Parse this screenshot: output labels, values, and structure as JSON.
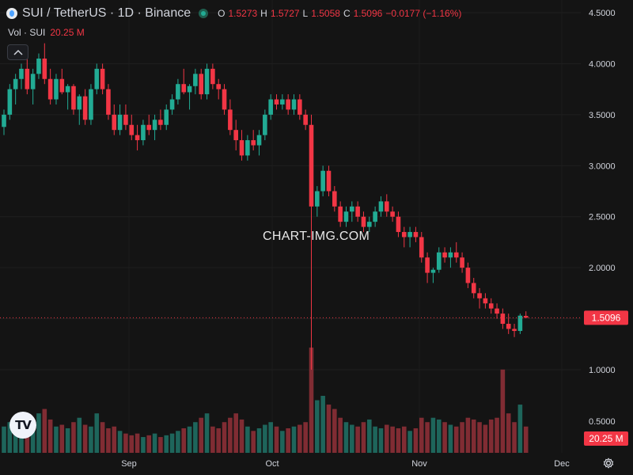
{
  "header": {
    "symbol": "SUI / TetherUS · 1D · Binance",
    "ohlc": [
      {
        "key": "O",
        "value": "1.5273"
      },
      {
        "key": "H",
        "value": "1.5727"
      },
      {
        "key": "L",
        "value": "1.5058"
      },
      {
        "key": "C",
        "value": "1.5096"
      },
      {
        "key": "",
        "value": "−0.0177 (−1.16%)"
      }
    ]
  },
  "volume_legend": {
    "label": "Vol · SUI",
    "value": "20.25 M"
  },
  "watermark": "CHART-IMG.COM",
  "colors": {
    "background": "#141414",
    "up": "#22ab94",
    "down": "#f23645",
    "grid": "#1f1f1f",
    "text": "#d1d4dc"
  },
  "chart_data": {
    "type": "candlestick",
    "ylim": [
      1.0,
      4.5
    ],
    "price_ticks": [
      "4.5000",
      "4.0000",
      "3.5000",
      "3.0000",
      "2.5000",
      "2.0000",
      "1.5000",
      "1.0000"
    ],
    "volume_ticks": [
      "0.5000"
    ],
    "x_ticks": [
      "Sep",
      "Oct",
      "Nov",
      "Dec"
    ],
    "last_price": "1.5096",
    "last_volume": "20.25 M",
    "candles": [
      [
        3.38,
        3.55,
        3.3,
        3.5
      ],
      [
        3.5,
        3.8,
        3.45,
        3.75
      ],
      [
        3.75,
        3.9,
        3.6,
        3.85
      ],
      [
        3.85,
        4.0,
        3.75,
        3.95
      ],
      [
        3.95,
        4.05,
        3.7,
        3.75
      ],
      [
        3.75,
        3.95,
        3.6,
        3.9
      ],
      [
        3.9,
        4.1,
        3.85,
        4.05
      ],
      [
        4.05,
        4.2,
        3.8,
        3.85
      ],
      [
        3.85,
        3.95,
        3.6,
        3.65
      ],
      [
        3.65,
        3.9,
        3.6,
        3.85
      ],
      [
        3.85,
        3.95,
        3.7,
        3.72
      ],
      [
        3.72,
        3.8,
        3.55,
        3.78
      ],
      [
        3.78,
        3.8,
        3.5,
        3.55
      ],
      [
        3.55,
        3.7,
        3.4,
        3.68
      ],
      [
        3.68,
        3.75,
        3.4,
        3.45
      ],
      [
        3.45,
        3.8,
        3.4,
        3.75
      ],
      [
        3.75,
        4.0,
        3.7,
        3.95
      ],
      [
        3.95,
        4.0,
        3.7,
        3.75
      ],
      [
        3.75,
        3.8,
        3.45,
        3.5
      ],
      [
        3.5,
        3.6,
        3.3,
        3.35
      ],
      [
        3.35,
        3.6,
        3.3,
        3.5
      ],
      [
        3.5,
        3.6,
        3.35,
        3.4
      ],
      [
        3.4,
        3.5,
        3.25,
        3.3
      ],
      [
        3.3,
        3.4,
        3.15,
        3.25
      ],
      [
        3.25,
        3.45,
        3.2,
        3.4
      ],
      [
        3.4,
        3.5,
        3.3,
        3.35
      ],
      [
        3.35,
        3.5,
        3.25,
        3.45
      ],
      [
        3.45,
        3.55,
        3.35,
        3.4
      ],
      [
        3.4,
        3.6,
        3.35,
        3.55
      ],
      [
        3.55,
        3.7,
        3.5,
        3.65
      ],
      [
        3.65,
        3.85,
        3.6,
        3.8
      ],
      [
        3.8,
        3.95,
        3.7,
        3.72
      ],
      [
        3.72,
        3.8,
        3.55,
        3.78
      ],
      [
        3.78,
        3.95,
        3.7,
        3.9
      ],
      [
        3.9,
        3.95,
        3.65,
        3.7
      ],
      [
        3.7,
        4.0,
        3.65,
        3.95
      ],
      [
        3.95,
        4.0,
        3.75,
        3.8
      ],
      [
        3.8,
        3.85,
        3.65,
        3.75
      ],
      [
        3.75,
        3.8,
        3.5,
        3.55
      ],
      [
        3.55,
        3.65,
        3.3,
        3.35
      ],
      [
        3.35,
        3.45,
        3.15,
        3.25
      ],
      [
        3.25,
        3.35,
        3.05,
        3.1
      ],
      [
        3.1,
        3.3,
        3.05,
        3.25
      ],
      [
        3.25,
        3.35,
        3.15,
        3.2
      ],
      [
        3.2,
        3.35,
        3.1,
        3.3
      ],
      [
        3.3,
        3.55,
        3.25,
        3.5
      ],
      [
        3.5,
        3.7,
        3.45,
        3.65
      ],
      [
        3.65,
        3.7,
        3.55,
        3.6
      ],
      [
        3.6,
        3.7,
        3.55,
        3.65
      ],
      [
        3.65,
        3.7,
        3.5,
        3.55
      ],
      [
        3.55,
        3.7,
        3.5,
        3.65
      ],
      [
        3.65,
        3.7,
        3.45,
        3.5
      ],
      [
        3.5,
        3.55,
        3.35,
        3.4
      ],
      [
        3.4,
        3.5,
        1.0,
        2.6
      ],
      [
        2.6,
        2.8,
        2.5,
        2.75
      ],
      [
        2.75,
        3.0,
        2.7,
        2.95
      ],
      [
        2.95,
        3.0,
        2.7,
        2.75
      ],
      [
        2.75,
        2.8,
        2.55,
        2.6
      ],
      [
        2.6,
        2.65,
        2.4,
        2.45
      ],
      [
        2.45,
        2.6,
        2.4,
        2.55
      ],
      [
        2.55,
        2.65,
        2.45,
        2.6
      ],
      [
        2.6,
        2.65,
        2.45,
        2.5
      ],
      [
        2.5,
        2.55,
        2.35,
        2.4
      ],
      [
        2.4,
        2.5,
        2.35,
        2.45
      ],
      [
        2.45,
        2.6,
        2.4,
        2.55
      ],
      [
        2.55,
        2.7,
        2.5,
        2.65
      ],
      [
        2.65,
        2.72,
        2.5,
        2.55
      ],
      [
        2.55,
        2.6,
        2.45,
        2.5
      ],
      [
        2.5,
        2.55,
        2.3,
        2.35
      ],
      [
        2.35,
        2.4,
        2.2,
        2.3
      ],
      [
        2.3,
        2.4,
        2.2,
        2.35
      ],
      [
        2.35,
        2.4,
        2.25,
        2.3
      ],
      [
        2.3,
        2.35,
        2.05,
        2.1
      ],
      [
        2.1,
        2.15,
        1.85,
        1.95
      ],
      [
        1.95,
        2.0,
        1.85,
        1.98
      ],
      [
        1.98,
        2.2,
        1.95,
        2.15
      ],
      [
        2.15,
        2.2,
        2.05,
        2.1
      ],
      [
        2.1,
        2.2,
        2.0,
        2.15
      ],
      [
        2.15,
        2.25,
        2.05,
        2.1
      ],
      [
        2.1,
        2.15,
        1.95,
        2.0
      ],
      [
        2.0,
        2.05,
        1.8,
        1.85
      ],
      [
        1.85,
        1.9,
        1.7,
        1.75
      ],
      [
        1.75,
        1.8,
        1.6,
        1.7
      ],
      [
        1.7,
        1.75,
        1.6,
        1.65
      ],
      [
        1.65,
        1.7,
        1.55,
        1.6
      ],
      [
        1.6,
        1.65,
        1.5,
        1.55
      ],
      [
        1.55,
        1.6,
        1.4,
        1.45
      ],
      [
        1.45,
        1.55,
        1.35,
        1.4
      ],
      [
        1.4,
        1.45,
        1.32,
        1.38
      ],
      [
        1.38,
        1.55,
        1.35,
        1.53
      ],
      [
        1.5273,
        1.5727,
        1.5058,
        1.5096
      ]
    ],
    "volume": [
      0.3,
      0.35,
      0.28,
      0.4,
      0.32,
      0.3,
      0.45,
      0.5,
      0.38,
      0.3,
      0.32,
      0.28,
      0.35,
      0.4,
      0.32,
      0.3,
      0.45,
      0.35,
      0.28,
      0.3,
      0.25,
      0.22,
      0.2,
      0.22,
      0.18,
      0.2,
      0.22,
      0.18,
      0.2,
      0.22,
      0.25,
      0.28,
      0.3,
      0.35,
      0.4,
      0.45,
      0.3,
      0.28,
      0.35,
      0.4,
      0.45,
      0.38,
      0.3,
      0.25,
      0.28,
      0.32,
      0.35,
      0.3,
      0.25,
      0.28,
      0.3,
      0.32,
      0.35,
      1.2,
      0.6,
      0.65,
      0.55,
      0.5,
      0.4,
      0.35,
      0.32,
      0.3,
      0.35,
      0.38,
      0.3,
      0.28,
      0.32,
      0.3,
      0.28,
      0.3,
      0.25,
      0.28,
      0.4,
      0.35,
      0.4,
      0.38,
      0.35,
      0.32,
      0.3,
      0.35,
      0.4,
      0.38,
      0.35,
      0.32,
      0.38,
      0.4,
      0.95,
      0.45,
      0.35,
      0.55,
      0.3
    ],
    "volume_ylim": [
      0,
      1.3
    ]
  }
}
